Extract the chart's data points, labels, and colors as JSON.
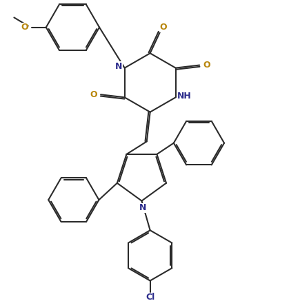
{
  "background_color": "#ffffff",
  "line_color": "#2b2b2b",
  "line_width": 1.5,
  "figsize": [
    4.19,
    4.37
  ],
  "dpi": 100,
  "colors": {
    "O": "#b8860b",
    "N": "#2b2b8b",
    "Cl": "#2b2b8b",
    "C": "#2b2b2b"
  }
}
